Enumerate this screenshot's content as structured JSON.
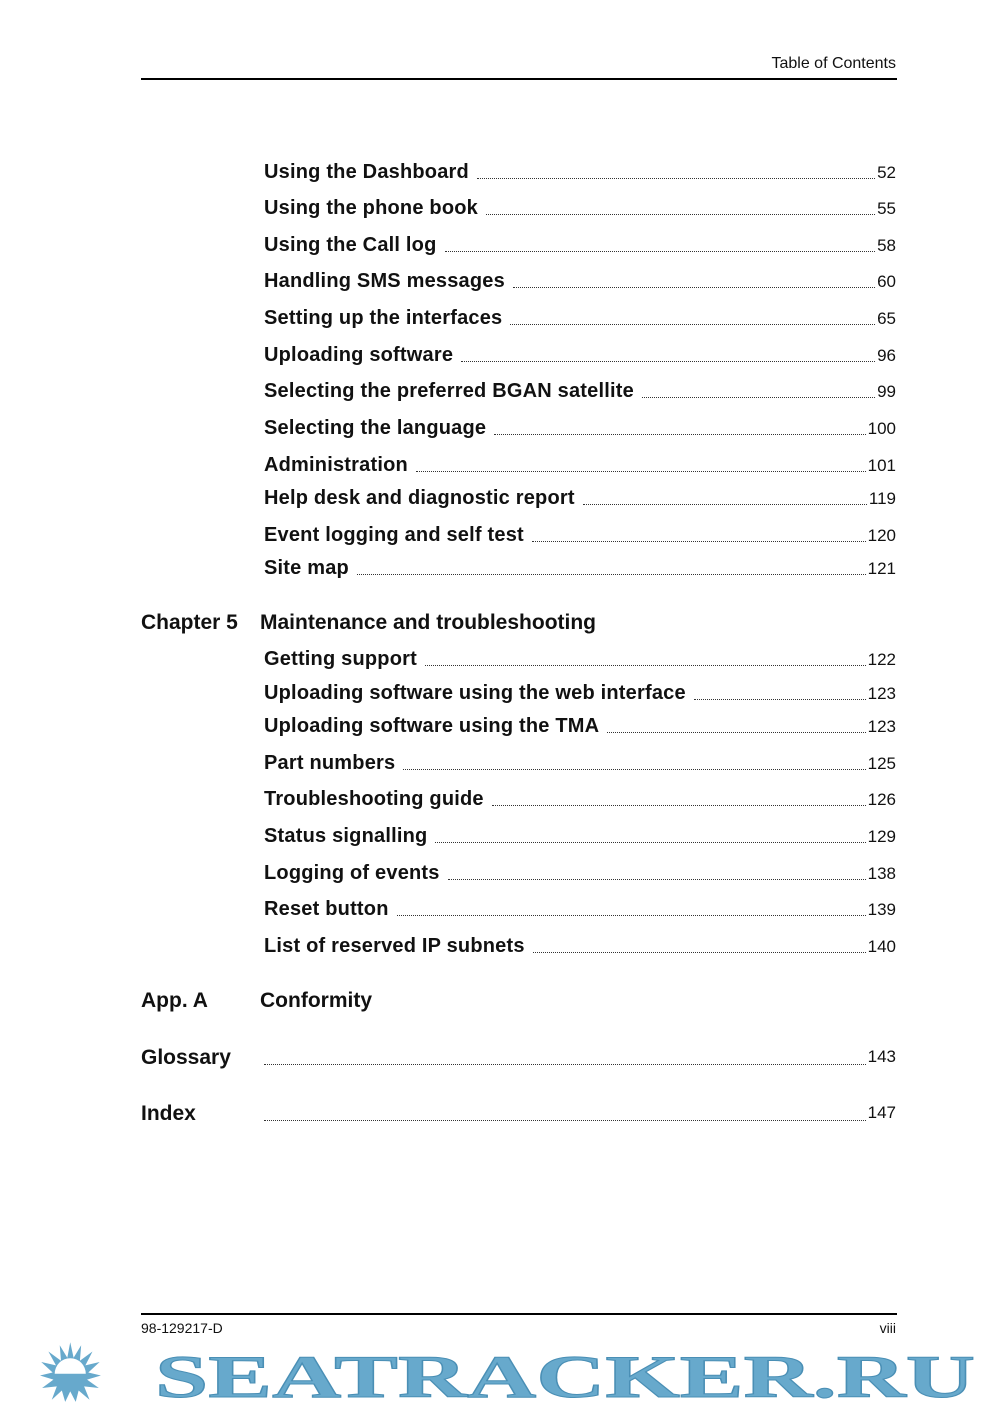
{
  "header": {
    "title": "Table of Contents"
  },
  "entries_a": [
    {
      "title": "Using the Dashboard",
      "page": "52"
    },
    {
      "title": "Using the phone book",
      "page": "55"
    },
    {
      "title": "Using the Call log",
      "page": "58"
    },
    {
      "title": "Handling SMS messages",
      "page": "60"
    },
    {
      "title": "Setting up the interfaces",
      "page": "65"
    },
    {
      "title": "Uploading software",
      "page": "96"
    },
    {
      "title": "Selecting the preferred BGAN satellite",
      "page": "99"
    },
    {
      "title": "Selecting the language",
      "page": "100"
    },
    {
      "title": "Administration",
      "page": "101"
    },
    {
      "title": "Help desk and diagnostic report",
      "page": "119"
    },
    {
      "title": "Event logging and self test",
      "page": "120"
    },
    {
      "title": "Site map",
      "page": "121"
    }
  ],
  "chapter5": {
    "label": "Chapter 5",
    "title": "Maintenance and troubleshooting"
  },
  "entries_b": [
    {
      "title": "Getting support",
      "page": "122"
    },
    {
      "title": "Uploading software using the web interface",
      "page": "123"
    },
    {
      "title": "Uploading software using the TMA",
      "page": "123"
    },
    {
      "title": "Part numbers",
      "page": "125"
    },
    {
      "title": "Troubleshooting guide",
      "page": "126"
    },
    {
      "title": "Status signalling",
      "page": "129"
    },
    {
      "title": "Logging of events",
      "page": "138"
    },
    {
      "title": "Reset button",
      "page": "139"
    },
    {
      "title": "List of reserved IP subnets",
      "page": "140"
    }
  ],
  "appendix_a": {
    "label": "App. A",
    "title": "Conformity"
  },
  "glossary": {
    "label": "Glossary",
    "page": "143"
  },
  "index": {
    "label": "Index",
    "page": "147"
  },
  "footer": {
    "doc_number": "98-129217-D",
    "page": "viii"
  },
  "watermark": {
    "text": "SEATRACKER.RU",
    "color": "#67a9cc"
  }
}
